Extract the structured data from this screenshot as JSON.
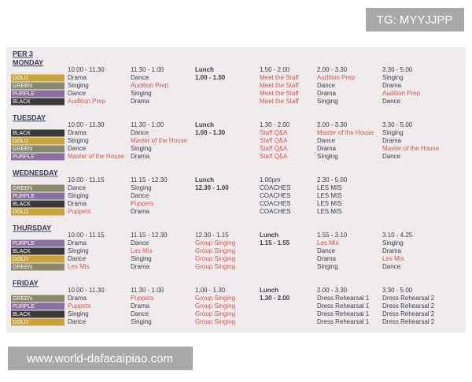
{
  "watermark_top": "TG: MYYJJPP",
  "watermark_bottom": "www.world-dafacaipiao.com",
  "title": "PER 3",
  "group_colors": {
    "GOLD": "#c9a43a",
    "GREEN": "#8a8a6a",
    "PURPLE": "#8b6fa0",
    "BLACK": "#3a3a3a"
  },
  "accent_color": "#d9534f",
  "days": [
    {
      "name": "MONDAY",
      "groups": [
        "GOLD",
        "GREEN",
        "PURPLE",
        "BLACK"
      ],
      "columns": [
        {
          "time": "10.00 - 11.30",
          "cells": [
            "Drama",
            "Singing",
            "Dance",
            "Audition Prep"
          ],
          "red": [
            3
          ]
        },
        {
          "time": "11.30 - 1.00",
          "cells": [
            "Dance",
            "Audition Prep",
            "Singing",
            "Drama"
          ],
          "red": [
            1
          ]
        },
        {
          "header": "Lunch",
          "time": "1.00 - 1.50"
        },
        {
          "time": "1.50 - 2.00",
          "cells": [
            "Meet the Staff",
            "Meet the Staff",
            "Meet the Staff",
            "Meet the Staff"
          ],
          "red": [
            0,
            1,
            2,
            3
          ]
        },
        {
          "time": "2.00 - 3.30",
          "cells": [
            "Audition Prep",
            "Dance",
            "Drama",
            "Singing"
          ],
          "red": [
            0
          ]
        },
        {
          "time": "3.30 - 5.00",
          "cells": [
            "Singing",
            "Drama",
            "Audition Prep",
            "Dance"
          ],
          "red": [
            2
          ]
        }
      ]
    },
    {
      "name": "TUESDAY",
      "groups": [
        "BLACK",
        "GOLD",
        "GREEN",
        "PURPLE"
      ],
      "columns": [
        {
          "time": "10.00 - 11.30",
          "cells": [
            "Drama",
            "Singing",
            "Dance",
            "Master of the House"
          ],
          "red": [
            3
          ]
        },
        {
          "time": "11.30 - 1.00",
          "cells": [
            "Dance",
            "Master of the House",
            "Singing",
            "Drama"
          ],
          "red": [
            1
          ]
        },
        {
          "header": "Lunch",
          "time": "1.00 - 1.30"
        },
        {
          "time": "1.30 - 2.00",
          "cells": [
            "Staff Q&A",
            "Staff Q&A",
            "Staff Q&A",
            "Staff Q&A"
          ],
          "red": [
            0,
            1,
            2,
            3
          ]
        },
        {
          "time": "2.00 - 3.30",
          "cells": [
            "Master of the House",
            "Dance",
            "Drama",
            "Singing"
          ],
          "red": [
            0
          ]
        },
        {
          "time": "3.30 - 5.00",
          "cells": [
            "Singing",
            "Drama",
            "Master of the House",
            "Dance"
          ],
          "red": [
            2
          ]
        }
      ]
    },
    {
      "name": "WEDNESDAY",
      "groups": [
        "GREEN",
        "PURPLE",
        "BLACK",
        "GOLD"
      ],
      "columns": [
        {
          "time": "10.00 - 11.15",
          "cells": [
            "Dance",
            "Singing",
            "Drama",
            "Puppets"
          ],
          "red": [
            3
          ]
        },
        {
          "time": "11.15 - 12.30",
          "cells": [
            "Singing",
            "Dance",
            "Puppets",
            "Drama"
          ],
          "red": [
            2
          ]
        },
        {
          "header": "Lunch",
          "time": "12.30 - 1.00"
        },
        {
          "time": "1.00pm",
          "cells": [
            "COACHES",
            "COACHES",
            "COACHES",
            "COACHES"
          ],
          "red": []
        },
        {
          "time": "2.30 - 5.00",
          "cells": [
            "LES MIS",
            "LES MIS",
            "LES MIS",
            "LES MIS"
          ],
          "red": []
        }
      ]
    },
    {
      "name": "THURSDAY",
      "groups": [
        "PURPLE",
        "BLACK",
        "GOLD",
        "GREEN"
      ],
      "columns": [
        {
          "time": "10.00 - 11.15",
          "cells": [
            "Drama",
            "Singing",
            "Dance",
            "Les Mis"
          ],
          "red": [
            3
          ]
        },
        {
          "time": "11.15 - 12.30",
          "cells": [
            "Dance",
            "Les Mis",
            "Singing",
            "Drama"
          ],
          "red": [
            1
          ]
        },
        {
          "time": "12.30 - 1.15",
          "cells": [
            "Group Singing",
            "Group Singing",
            "Group Singing",
            "Group Singing"
          ],
          "red": [
            0,
            1,
            2,
            3
          ]
        },
        {
          "header": "Lunch",
          "time": "1.15 - 1.55"
        },
        {
          "time": "1.55 - 3.10",
          "cells": [
            "Les Mis",
            "Dance",
            "Drama",
            "Singing"
          ],
          "red": [
            0
          ]
        },
        {
          "time": "3.10 - 4.25",
          "cells": [
            "Singing",
            "Drama",
            "Les Mis",
            "Dance"
          ],
          "red": [
            2
          ]
        }
      ]
    },
    {
      "name": "FRIDAY",
      "groups": [
        "GREEN",
        "PURPLE",
        "BLACK",
        "GOLD"
      ],
      "columns": [
        {
          "time": "10.00 - 11.30",
          "cells": [
            "Drama",
            "Puppets",
            "Singing",
            "Dance"
          ],
          "red": [
            1
          ]
        },
        {
          "time": "11.30 - 1.00",
          "cells": [
            "Puppets",
            "Drama",
            "Dance",
            "Singing"
          ],
          "red": [
            0
          ]
        },
        {
          "time": "1.00 - 1.30",
          "cells": [
            "Group Singing",
            "Group Singing",
            "Group Singing",
            "Group Singing"
          ],
          "red": [
            0,
            1,
            2,
            3
          ]
        },
        {
          "header": "Lunch",
          "time": "1.30 - 2.00"
        },
        {
          "time": "2.00 - 3.30",
          "cells": [
            "Dress Rehearsal 1",
            "Dress Rehearsal 1",
            "Dress Rehearsal 1",
            "Dress Rehearsal 1"
          ],
          "red": []
        },
        {
          "time": "3.30 - 5.00",
          "cells": [
            "Dress Rehearsal 2",
            "Dress Rehearsal 2",
            "Dress Rehearsal 2",
            "Dress Rehearsal 2"
          ],
          "red": []
        }
      ]
    }
  ]
}
